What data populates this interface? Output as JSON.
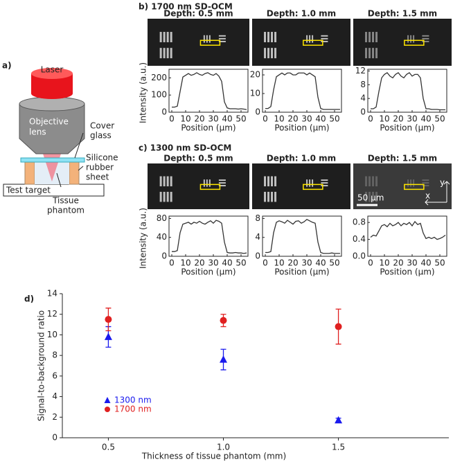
{
  "panels": {
    "a": "a)",
    "b": "b) 1700 nm SD-OCM",
    "c": "c) 1300 nm SD-OCM",
    "d": "d)"
  },
  "diagram": {
    "laser": "Laser",
    "objective": [
      "Objective",
      "lens"
    ],
    "cover": [
      "Cover",
      "glass"
    ],
    "silicone": [
      "Silicone",
      "rubber",
      "sheet"
    ],
    "target": "Test target",
    "phantom": [
      "Tissue",
      "phantom"
    ]
  },
  "images": {
    "b": [
      "Depth: 0.5 mm",
      "Depth: 1.0 mm",
      "Depth: 1.5 mm"
    ],
    "c": [
      "Depth: 0.5 mm",
      "Depth: 1.0 mm",
      "Depth: 1.5 mm"
    ],
    "scale_bar": "50 μm",
    "axis_x": "x",
    "axis_y": "y"
  },
  "chart_data": [
    {
      "type": "line",
      "y_label": "Intensity (a.u.)",
      "x_label": "Position (μm)",
      "color": "#333333",
      "x": [
        0,
        2,
        4,
        6,
        8,
        10,
        12,
        14,
        16,
        18,
        20,
        22,
        24,
        26,
        28,
        30,
        32,
        34,
        36,
        38,
        40,
        42,
        44,
        46,
        48,
        50,
        52,
        54
      ],
      "values": [
        30,
        30,
        35,
        120,
        205,
        215,
        225,
        215,
        220,
        230,
        220,
        215,
        225,
        230,
        220,
        215,
        225,
        210,
        180,
        60,
        25,
        20,
        20,
        20,
        18,
        20,
        18,
        15
      ],
      "xlim": [
        -2,
        55
      ],
      "xticks": [
        0,
        10,
        20,
        30,
        40,
        50
      ],
      "ylim": [
        0,
        250
      ],
      "yticks": [
        0,
        100,
        200
      ]
    },
    {
      "type": "line",
      "x_label": "Position (μm)",
      "color": "#333333",
      "x": [
        0,
        2,
        4,
        6,
        8,
        10,
        12,
        14,
        16,
        18,
        20,
        22,
        24,
        26,
        28,
        30,
        32,
        34,
        36,
        38,
        40,
        42,
        44,
        46,
        48,
        50,
        52,
        54
      ],
      "values": [
        2,
        2,
        3,
        12,
        19,
        20,
        21,
        20,
        21,
        21,
        20,
        20,
        21,
        21,
        21,
        20,
        21,
        20,
        19,
        8,
        2,
        1.5,
        1.5,
        1.5,
        1.5,
        1.5,
        1.5,
        1.5
      ],
      "xlim": [
        -2,
        55
      ],
      "xticks": [
        0,
        10,
        20,
        30,
        40,
        50
      ],
      "ylim": [
        0,
        23
      ],
      "yticks": [
        0,
        10,
        20
      ]
    },
    {
      "type": "line",
      "x_label": "Position (μm)",
      "color": "#333333",
      "x": [
        0,
        2,
        4,
        6,
        8,
        10,
        12,
        14,
        16,
        18,
        20,
        22,
        24,
        26,
        28,
        30,
        32,
        34,
        36,
        38,
        40,
        42,
        44,
        46,
        48,
        50,
        52,
        54
      ],
      "values": [
        1,
        1,
        1.5,
        6,
        10,
        11,
        11.5,
        10.5,
        10,
        11,
        11.5,
        10.5,
        10,
        11,
        11.5,
        10.5,
        11,
        11,
        10,
        4,
        1,
        1,
        0.8,
        0.8,
        0.8,
        0.7,
        0.7,
        0.7
      ],
      "xlim": [
        -2,
        55
      ],
      "xticks": [
        0,
        10,
        20,
        30,
        40,
        50
      ],
      "ylim": [
        0,
        12.5
      ],
      "yticks": [
        0,
        4,
        8,
        12
      ]
    },
    {
      "type": "line",
      "y_label": "Intensity (a.u.)",
      "x_label": "Position (μm)",
      "color": "#333333",
      "x": [
        0,
        2,
        4,
        6,
        8,
        10,
        12,
        14,
        16,
        18,
        20,
        22,
        24,
        26,
        28,
        30,
        32,
        34,
        36,
        38,
        40,
        42,
        44,
        46,
        48,
        50,
        52,
        54
      ],
      "values": [
        10,
        10,
        12,
        50,
        68,
        70,
        72,
        68,
        72,
        70,
        74,
        70,
        68,
        72,
        75,
        70,
        76,
        74,
        70,
        30,
        8,
        7,
        7,
        8,
        7,
        7,
        6,
        7
      ],
      "xlim": [
        -2,
        55
      ],
      "xticks": [
        0,
        10,
        20,
        30,
        40,
        50
      ],
      "ylim": [
        0,
        85
      ],
      "yticks": [
        0,
        40,
        80
      ]
    },
    {
      "type": "line",
      "x_label": "Position (μm)",
      "color": "#333333",
      "x": [
        0,
        2,
        4,
        6,
        8,
        10,
        12,
        14,
        16,
        18,
        20,
        22,
        24,
        26,
        28,
        30,
        32,
        34,
        36,
        38,
        40,
        42,
        44,
        46,
        48,
        50,
        52,
        54
      ],
      "values": [
        0.8,
        0.8,
        1,
        5,
        7.2,
        7.5,
        7.3,
        7,
        7.6,
        7.2,
        6.8,
        7.4,
        7.5,
        7,
        7.3,
        7.8,
        7.5,
        7.2,
        7,
        3,
        0.8,
        0.6,
        0.6,
        0.6,
        0.7,
        0.6,
        0.6,
        0.6
      ],
      "xlim": [
        -2,
        55
      ],
      "xticks": [
        0,
        10,
        20,
        30,
        40,
        50
      ],
      "ylim": [
        0,
        8.5
      ],
      "yticks": [
        0,
        4,
        8
      ]
    },
    {
      "type": "line",
      "x_label": "Position (μm)",
      "color": "#333333",
      "x": [
        0,
        2,
        4,
        6,
        8,
        10,
        12,
        14,
        16,
        18,
        20,
        22,
        24,
        26,
        28,
        30,
        32,
        34,
        36,
        38,
        40,
        42,
        44,
        46,
        48,
        50,
        52,
        54
      ],
      "values": [
        0.45,
        0.5,
        0.48,
        0.6,
        0.72,
        0.75,
        0.7,
        0.78,
        0.72,
        0.75,
        0.8,
        0.72,
        0.78,
        0.75,
        0.8,
        0.72,
        0.82,
        0.75,
        0.78,
        0.55,
        0.42,
        0.45,
        0.42,
        0.45,
        0.4,
        0.42,
        0.45,
        0.5
      ],
      "xlim": [
        -2,
        55
      ],
      "xticks": [
        0,
        10,
        20,
        30,
        40,
        50
      ],
      "ylim": [
        0,
        0.95
      ],
      "yticks": [
        {
          "value": 0,
          "label": "0.0"
        },
        0.4,
        0.8
      ]
    },
    {
      "type": "scatter",
      "x_label": "Thickness of tissue phantom (mm)",
      "y_label": "Signal-to-background ratio",
      "x": [
        0.5,
        1,
        1.5
      ],
      "xlim": [
        0.3,
        1.98
      ],
      "xticks": [
        0.5,
        {
          "value": 1,
          "label": "1.0"
        },
        1.5
      ],
      "ylim": [
        0,
        14
      ],
      "yticks": [
        0,
        2,
        4,
        6,
        8,
        10,
        12,
        14
      ],
      "legend": "lower left",
      "series": [
        {
          "name": "1300 nm",
          "color": "#1a1aee",
          "marker": "triangle",
          "values": [
            9.8,
            7.6,
            1.7
          ],
          "errors": [
            1.0,
            1.0,
            0.2
          ]
        },
        {
          "name": "1700 nm",
          "color": "#e02020",
          "marker": "circle",
          "values": [
            11.5,
            11.4,
            10.8
          ],
          "errors": [
            1.1,
            0.6,
            1.7
          ]
        }
      ]
    }
  ]
}
